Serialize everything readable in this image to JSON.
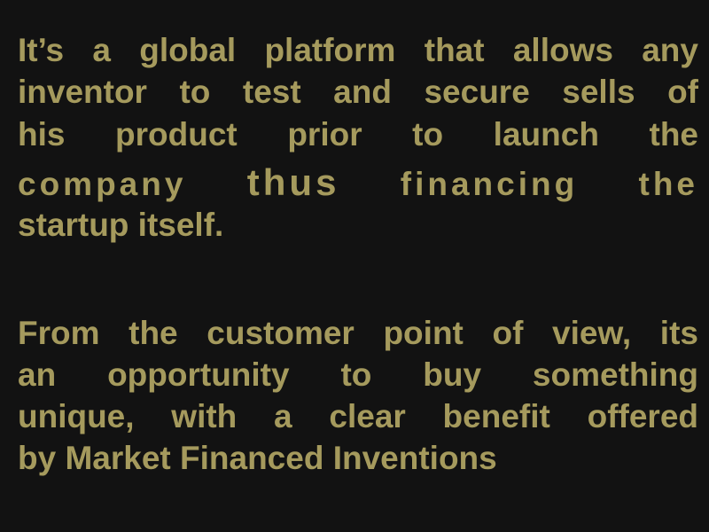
{
  "slide": {
    "paragraph_1": {
      "line_1": "It’s a global platform that allows any",
      "line_2": "inventor to test and secure sells of",
      "line_3": "his product prior to launch the",
      "line_4_a": "company ",
      "line_4_emphasis": "thus",
      "line_4_b": " financing the",
      "line_5": "startup itself."
    },
    "paragraph_2": {
      "line_1": "From the customer point of view, its",
      "line_2": "an opportunity to buy something",
      "line_3": "unique, with a clear benefit offered",
      "line_4": "by Market Financed Inventions"
    }
  }
}
